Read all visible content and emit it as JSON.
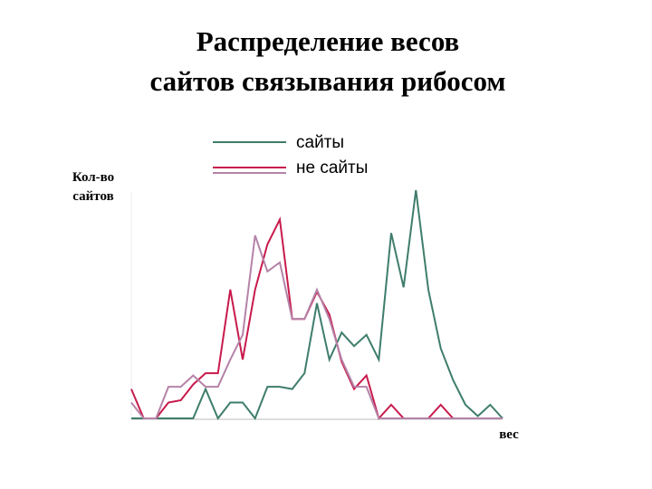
{
  "chart_data": {
    "type": "line",
    "title": [
      "Распределение весов",
      "сайтов связывания рибосом"
    ],
    "ylabel": [
      "Кол-во",
      "сайтов"
    ],
    "xlabel": "вес",
    "xlim": [
      0,
      30
    ],
    "ylim": [
      0,
      101
    ],
    "series": [
      {
        "name": "сайты",
        "color": "#3f7d6c",
        "values": [
          0,
          0,
          0,
          0,
          0,
          0,
          13,
          0,
          7,
          7,
          0,
          14,
          14,
          13,
          20,
          51,
          26,
          38,
          32,
          37,
          26,
          82,
          58,
          101,
          57,
          31,
          17,
          6,
          1,
          6,
          0
        ]
      },
      {
        "name": "не сайты",
        "color": "#c81a4c",
        "values": [
          13,
          0,
          0,
          7,
          8,
          15,
          20,
          20,
          57,
          26,
          57,
          77,
          88,
          44,
          44,
          56,
          46,
          25,
          13,
          19,
          0,
          6,
          0,
          0,
          0,
          6,
          0,
          0,
          0,
          0,
          0
        ]
      },
      {
        "color": "#b583a8",
        "values": [
          7,
          0,
          0,
          14,
          14,
          19,
          14,
          14,
          26,
          37,
          81,
          65,
          69,
          44,
          44,
          57,
          44,
          26,
          14,
          14,
          0,
          0,
          0,
          0,
          0,
          0,
          0,
          0,
          0,
          0,
          0
        ]
      }
    ]
  }
}
